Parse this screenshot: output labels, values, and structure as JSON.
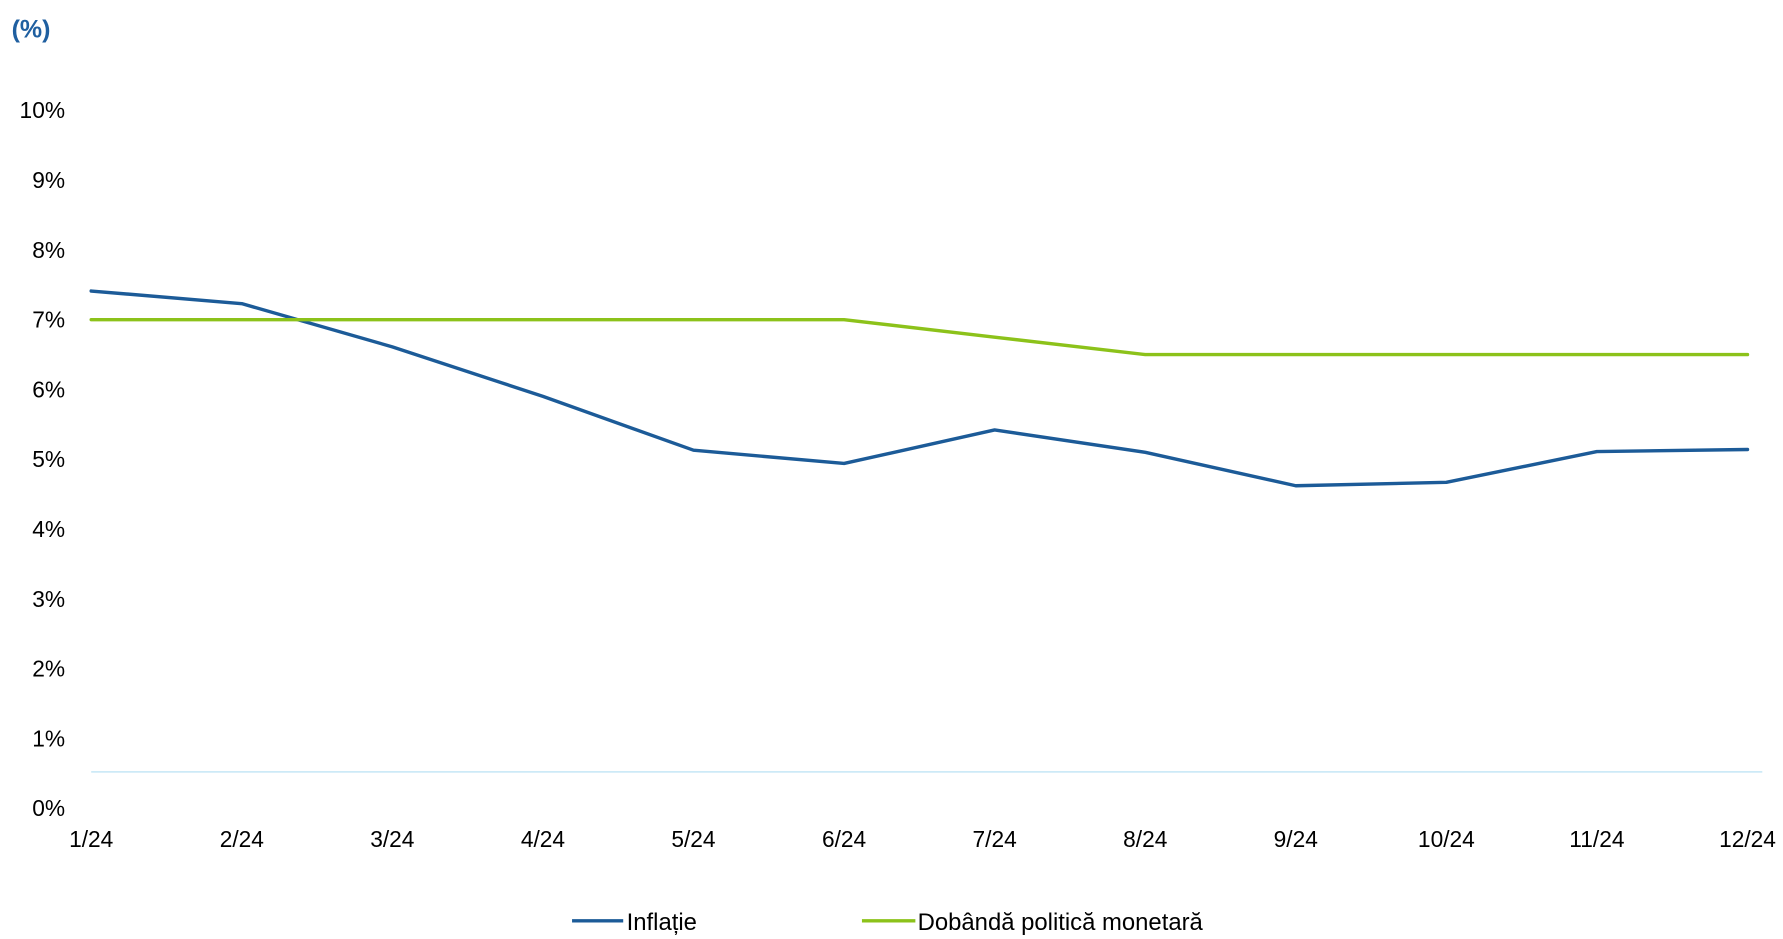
{
  "chart_data": {
    "type": "line",
    "ylabel": "(%)",
    "xlabel": "",
    "categories": [
      "1/24",
      "2/24",
      "3/24",
      "4/24",
      "5/24",
      "6/24",
      "7/24",
      "8/24",
      "9/24",
      "10/24",
      "11/24",
      "12/24"
    ],
    "yticks": [
      "0%",
      "1%",
      "2%",
      "3%",
      "4%",
      "5%",
      "6%",
      "7%",
      "8%",
      "9%",
      "10%"
    ],
    "ylim": [
      0,
      10
    ],
    "grid": false,
    "legend_position": "bottom-center",
    "series": [
      {
        "name": "Inflație",
        "color": "#1c5b98",
        "values": [
          7.41,
          7.23,
          6.61,
          5.9,
          5.13,
          4.94,
          5.42,
          5.1,
          4.62,
          4.67,
          5.11,
          5.14
        ]
      },
      {
        "name": "Dobândă politică monetară",
        "color": "#8cc21a",
        "values": [
          7.0,
          7.0,
          7.0,
          7.0,
          7.0,
          7.0,
          6.75,
          6.5,
          6.5,
          6.5,
          6.5,
          6.5
        ]
      }
    ]
  },
  "colors": {
    "unit_label": "#1f5fa0",
    "axis_line": "#cdeaf7",
    "text": "#000000"
  }
}
